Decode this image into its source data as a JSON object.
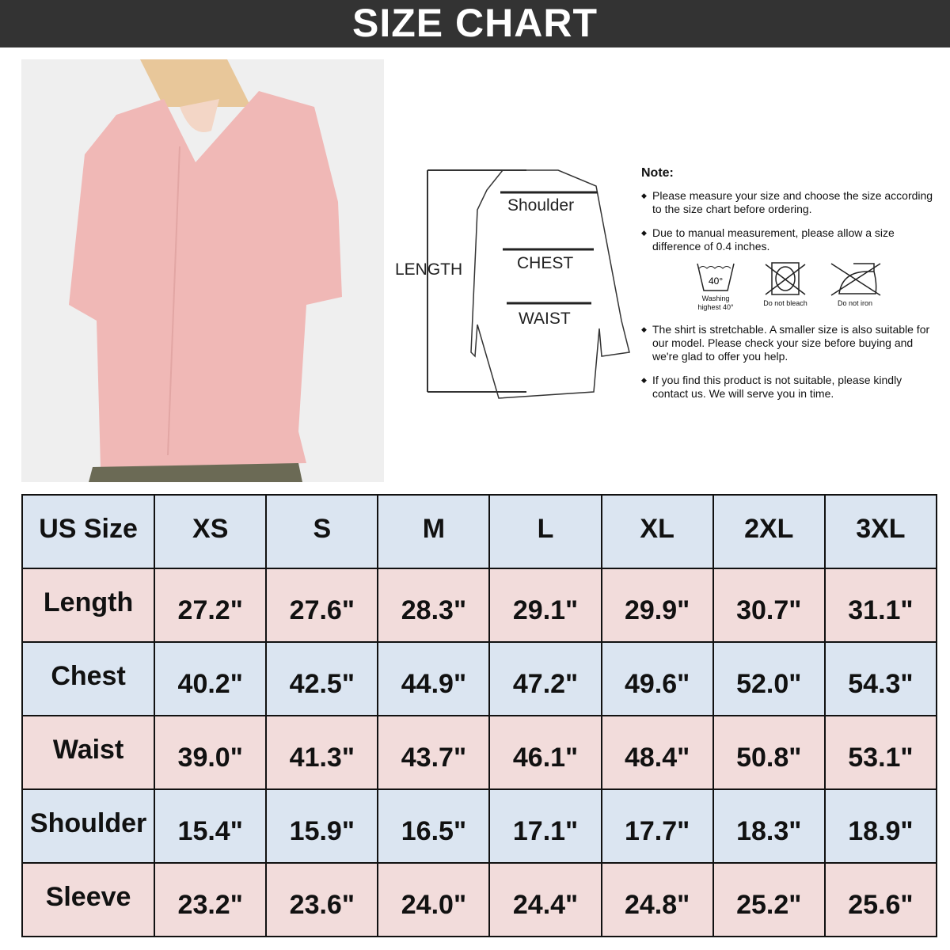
{
  "title": "SIZE CHART",
  "diagram": {
    "length": "LENGTH",
    "shoulder": "Shoulder",
    "chest": "CHEST",
    "waist": "WAIST"
  },
  "notes": {
    "title": "Note:",
    "items": [
      "Please measure your size and choose the size according to the size chart before ordering.",
      "Due to manual measurement, please allow a size difference of 0.4 inches.",
      "The shirt is stretchable. A smaller size is also suitable for our model. Please check your size before buying and we're glad to offer you help.",
      "If you find this product is not suitable, please kindly contact us. We will serve you in time."
    ],
    "care": [
      {
        "icon": "wash-40-icon",
        "symbol": "40°",
        "label": "Washing highest 40°"
      },
      {
        "icon": "no-bleach-icon",
        "label": "Do not bleach"
      },
      {
        "icon": "no-iron-icon",
        "label": "Do not iron"
      }
    ]
  },
  "colors": {
    "header_bg": "#333333",
    "row_blue": "#dbe5f1",
    "row_pink": "#f2dcdb",
    "shirt": "#f0b8b6"
  },
  "table": {
    "header": [
      "US Size",
      "XS",
      "S",
      "M",
      "L",
      "XL",
      "2XL",
      "3XL"
    ],
    "rows": [
      [
        "Length",
        "27.2\"",
        "27.6\"",
        "28.3\"",
        "29.1\"",
        "29.9\"",
        "30.7\"",
        "31.1\""
      ],
      [
        "Chest",
        "40.2\"",
        "42.5\"",
        "44.9\"",
        "47.2\"",
        "49.6\"",
        "52.0\"",
        "54.3\""
      ],
      [
        "Waist",
        "39.0\"",
        "41.3\"",
        "43.7\"",
        "46.1\"",
        "48.4\"",
        "50.8\"",
        "53.1\""
      ],
      [
        "Shoulder",
        "15.4\"",
        "15.9\"",
        "16.5\"",
        "17.1\"",
        "17.7\"",
        "18.3\"",
        "18.9\""
      ],
      [
        "Sleeve",
        "23.2\"",
        "23.6\"",
        "24.0\"",
        "24.4\"",
        "24.8\"",
        "25.2\"",
        "25.6\""
      ]
    ]
  }
}
